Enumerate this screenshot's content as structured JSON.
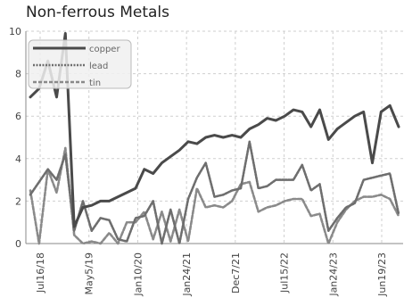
{
  "chart_data": {
    "type": "line",
    "title": "Non-ferrous Metals",
    "xlabel": "",
    "ylabel": "",
    "ylim": [
      0,
      10
    ],
    "yticks": [
      0,
      2,
      4,
      6,
      8,
      10
    ],
    "xtick_labels": [
      "Jul16/18",
      "May5/19",
      "Jan10/20",
      "Jan24/21",
      "Dec7/21",
      "Jul15/22",
      "Jan24/23",
      "Jun19/23"
    ],
    "grid": true,
    "legend_position": "top-left",
    "series": [
      {
        "name": "copper",
        "color": "#4a4a4a",
        "style": "solid",
        "values": [
          6.9,
          7.3,
          8.6,
          6.9,
          9.9,
          0.8,
          1.7,
          1.8,
          2.0,
          2.0,
          2.2,
          2.4,
          2.6,
          3.5,
          3.3,
          3.8,
          4.1,
          4.4,
          4.8,
          4.7,
          5.0,
          5.1,
          5.0,
          5.1,
          5.0,
          5.4,
          5.6,
          5.9,
          5.8,
          6.0,
          6.3,
          6.2,
          5.5,
          6.3,
          4.9,
          5.4,
          5.7,
          6.0,
          6.2,
          3.8,
          6.2,
          6.5,
          5.5
        ]
      },
      {
        "name": "lead",
        "color": "#6e6e6e",
        "style": "dotted",
        "values": [
          2.3,
          2.9,
          3.5,
          3.0,
          4.2,
          0.6,
          2.0,
          0.6,
          1.2,
          1.1,
          0.2,
          0.1,
          1.2,
          1.3,
          2.0,
          0.0,
          1.6,
          0.0,
          2.1,
          3.1,
          3.8,
          2.2,
          2.3,
          2.5,
          2.6,
          4.8,
          2.6,
          2.7,
          3.0,
          3.0,
          3.0,
          3.7,
          2.5,
          2.8,
          0.6,
          1.2,
          1.7,
          1.9,
          3.0,
          3.1,
          3.2,
          3.3,
          1.4
        ]
      },
      {
        "name": "tin",
        "color": "#8a8a8a",
        "style": "dashed",
        "values": [
          2.5,
          0.0,
          3.5,
          2.4,
          4.5,
          0.4,
          0.0,
          0.1,
          0.0,
          0.5,
          0.0,
          1.0,
          1.0,
          1.5,
          0.2,
          1.5,
          0.1,
          1.6,
          0.1,
          2.6,
          1.7,
          1.8,
          1.7,
          2.0,
          2.8,
          2.9,
          1.5,
          1.7,
          1.8,
          2.0,
          2.1,
          2.1,
          1.3,
          1.4,
          0.0,
          1.0,
          1.6,
          2.0,
          2.2,
          2.2,
          2.3,
          2.1,
          1.3
        ]
      }
    ]
  }
}
